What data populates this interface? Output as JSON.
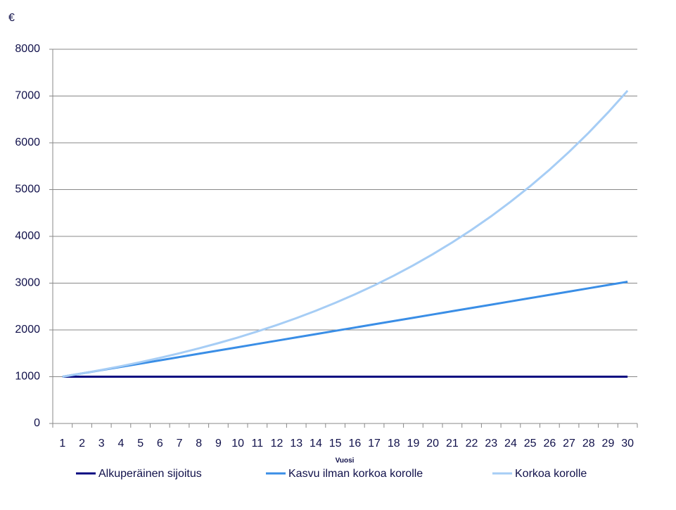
{
  "chart_data": {
    "type": "line",
    "y_label": "€",
    "x_label": "Vuosi",
    "categories": [
      "1",
      "2",
      "3",
      "4",
      "5",
      "6",
      "7",
      "8",
      "9",
      "10",
      "11",
      "12",
      "13",
      "14",
      "15",
      "16",
      "17",
      "18",
      "19",
      "20",
      "21",
      "22",
      "23",
      "24",
      "25",
      "26",
      "27",
      "28",
      "29",
      "30"
    ],
    "series": [
      {
        "name": "Alkuperäinen sijoitus",
        "color": "#0a0a80",
        "values": [
          1000,
          1000,
          1000,
          1000,
          1000,
          1000,
          1000,
          1000,
          1000,
          1000,
          1000,
          1000,
          1000,
          1000,
          1000,
          1000,
          1000,
          1000,
          1000,
          1000,
          1000,
          1000,
          1000,
          1000,
          1000,
          1000,
          1000,
          1000,
          1000,
          1000
        ]
      },
      {
        "name": "Kasvu ilman korkoa korolle",
        "color": "#3a8ee6",
        "values": [
          1000,
          1070,
          1140,
          1210,
          1280,
          1350,
          1420,
          1490,
          1560,
          1630,
          1700,
          1770,
          1840,
          1910,
          1980,
          2050,
          2120,
          2190,
          2260,
          2330,
          2400,
          2470,
          2540,
          2610,
          2680,
          2750,
          2820,
          2890,
          2960,
          3030
        ]
      },
      {
        "name": "Korkoa korolle",
        "color": "#a6cdf5",
        "values": [
          1000,
          1070,
          1145,
          1225,
          1311,
          1403,
          1501,
          1606,
          1718,
          1838,
          1967,
          2105,
          2252,
          2410,
          2579,
          2759,
          2952,
          3159,
          3380,
          3617,
          3870,
          4141,
          4430,
          4741,
          5072,
          5427,
          5807,
          6214,
          6649,
          7114
        ]
      }
    ],
    "ylim": [
      0,
      8000
    ],
    "yticks": [
      0,
      1000,
      2000,
      3000,
      4000,
      5000,
      6000,
      7000,
      8000
    ],
    "grid": true,
    "legend": "bottom"
  }
}
